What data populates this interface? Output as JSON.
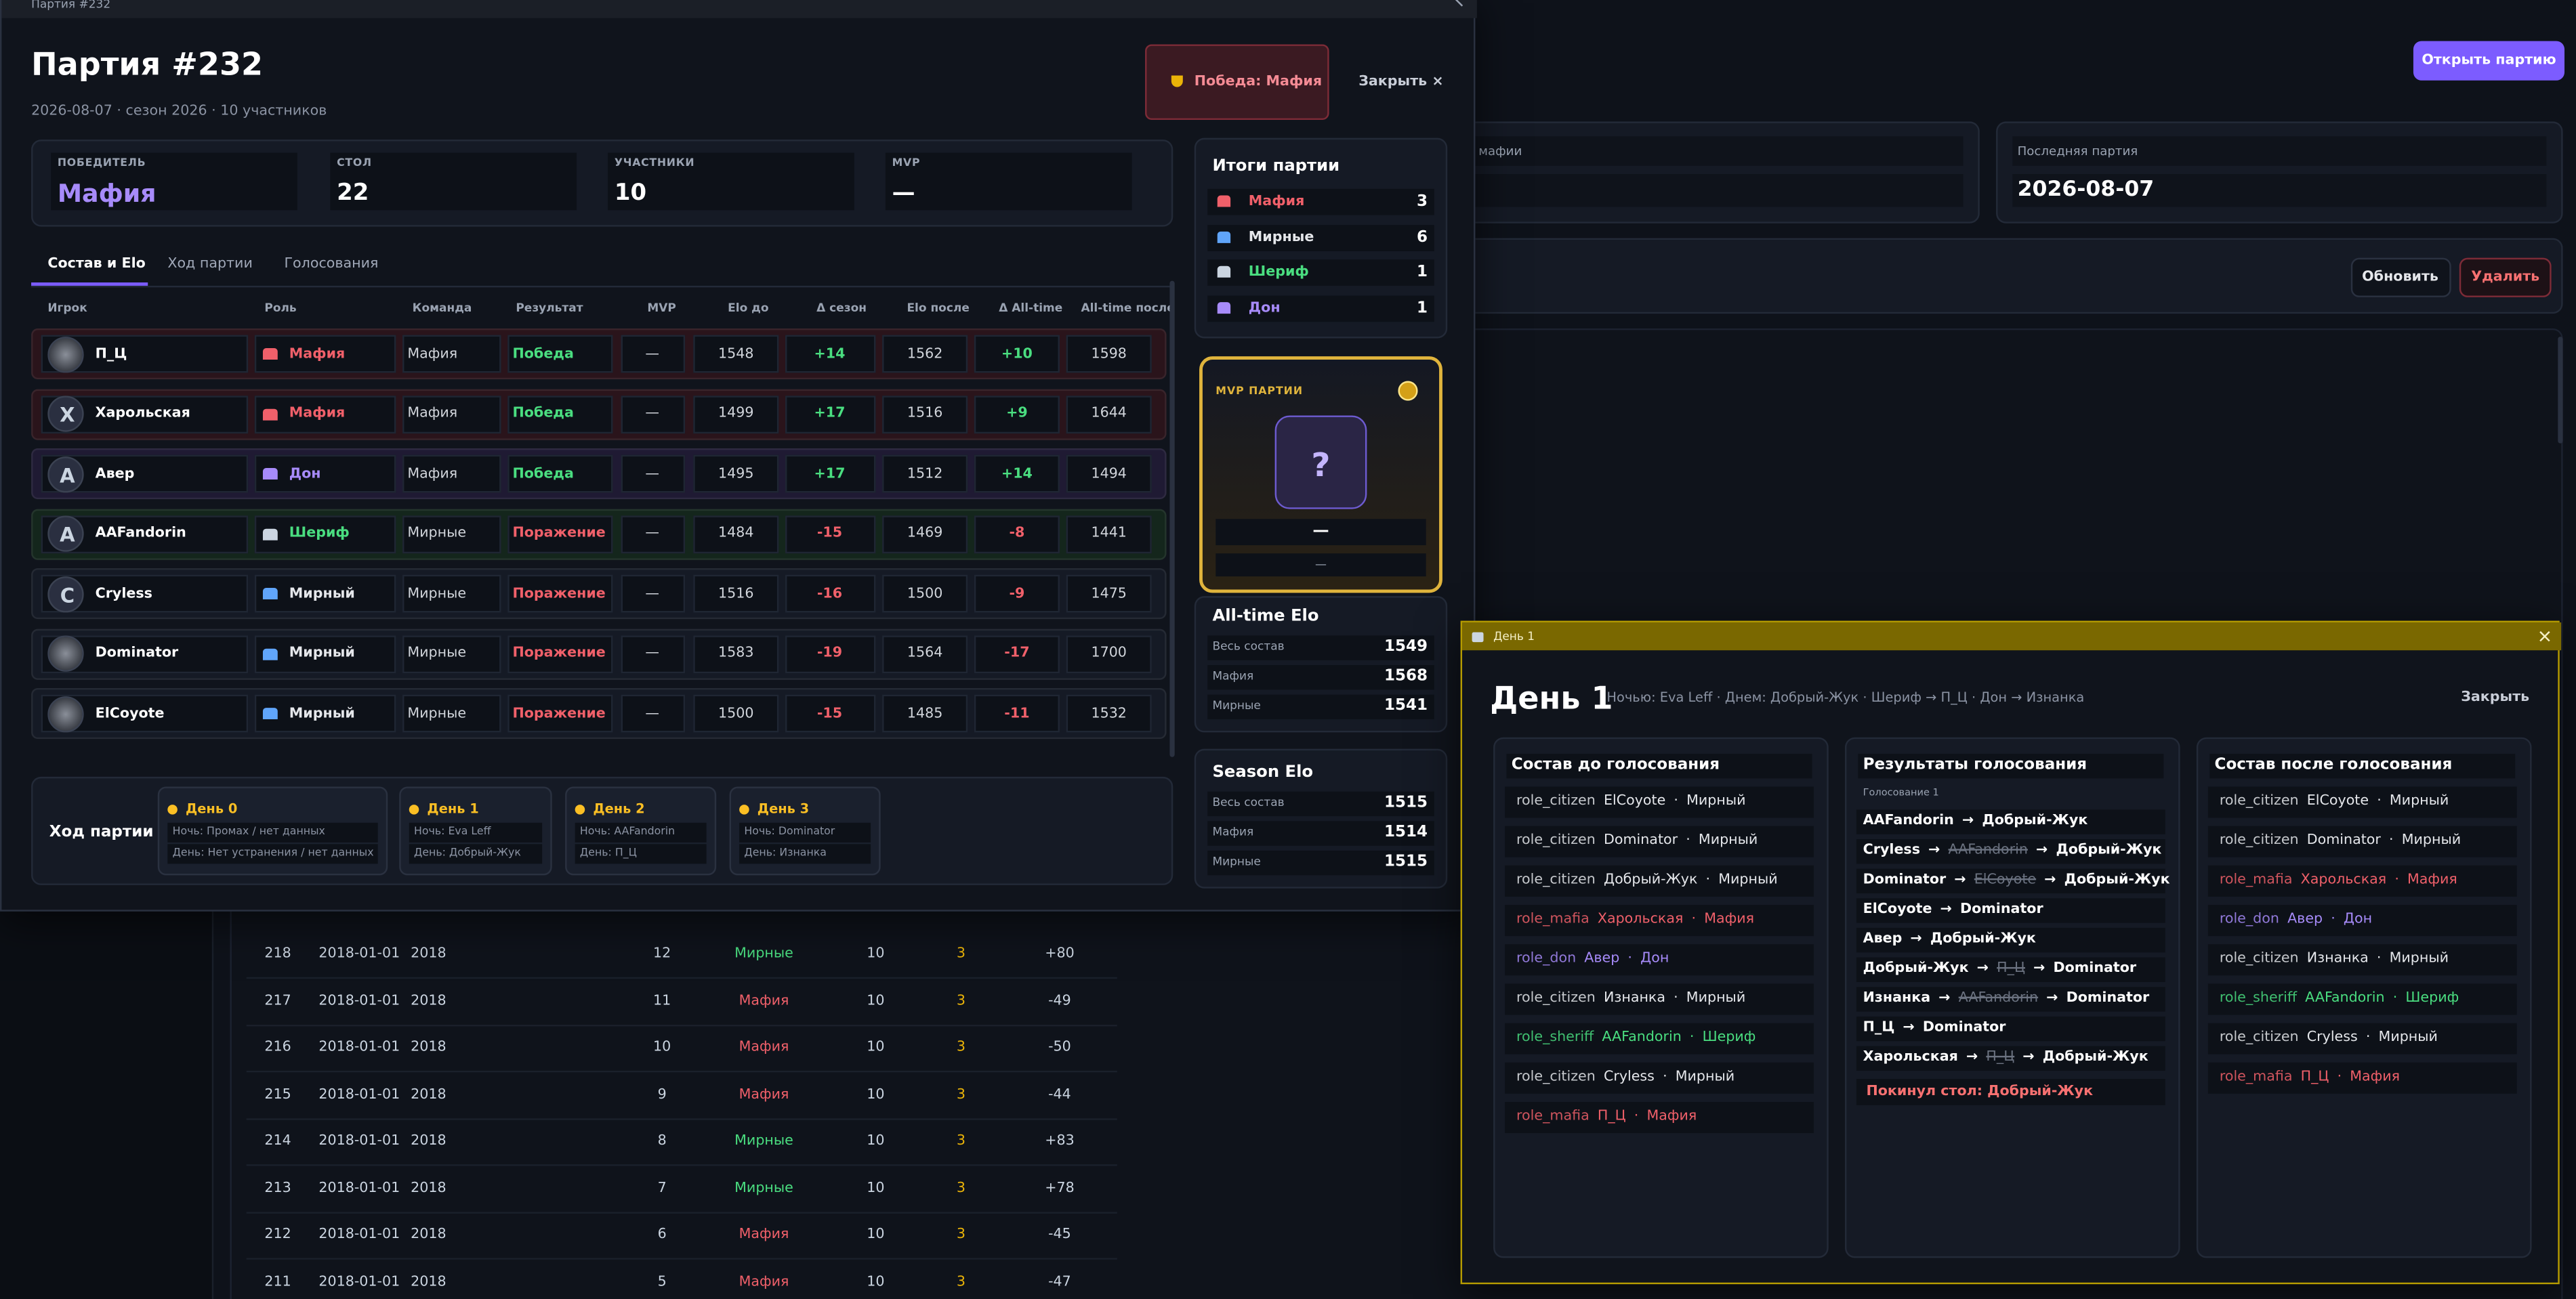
{
  "background": {
    "open_button": "Открыть партию",
    "cards": [
      {
        "label": "мафии"
      },
      {
        "label": "Последняя партия",
        "value": "2026-08-07"
      }
    ],
    "refresh_button": "Обновить",
    "delete_button": "Удалить",
    "rows": [
      {
        "cells": [
          "218",
          "2018-01-01",
          "2018",
          "12",
          "Мирные",
          "10",
          "3",
          "+80"
        ],
        "color": "#4ade80"
      },
      {
        "cells": [
          "217",
          "2018-01-01",
          "2018",
          "11",
          "Мафия",
          "10",
          "3",
          "-49"
        ],
        "color": "#f0606a"
      },
      {
        "cells": [
          "216",
          "2018-01-01",
          "2018",
          "10",
          "Мафия",
          "10",
          "3",
          "-50"
        ],
        "color": "#f0606a"
      },
      {
        "cells": [
          "215",
          "2018-01-01",
          "2018",
          "9",
          "Мафия",
          "10",
          "3",
          "-44"
        ],
        "color": "#f0606a"
      },
      {
        "cells": [
          "214",
          "2018-01-01",
          "2018",
          "8",
          "Мирные",
          "10",
          "3",
          "+83"
        ],
        "color": "#4ade80"
      },
      {
        "cells": [
          "213",
          "2018-01-01",
          "2018",
          "7",
          "Мирные",
          "10",
          "3",
          "+78"
        ],
        "color": "#4ade80"
      },
      {
        "cells": [
          "212",
          "2018-01-01",
          "2018",
          "6",
          "Мафия",
          "10",
          "3",
          "-45"
        ],
        "color": "#f0606a"
      },
      {
        "cells": [
          "211",
          "2018-01-01",
          "2018",
          "5",
          "Мафия",
          "10",
          "3",
          "-47"
        ],
        "color": "#f0606a"
      }
    ]
  },
  "window_main": {
    "titlebar": "Партия #232",
    "title": "Партия #232",
    "subtitle": "2026-08-07 · сезон 2026 · 10 участников",
    "badge": "Победа: Мафия",
    "close": "Закрыть ×",
    "stats": [
      {
        "label": "ПОБЕДИТЕЛЬ",
        "value": "Мафия"
      },
      {
        "label": "СТОЛ",
        "value": "22"
      },
      {
        "label": "УЧАСТНИКИ",
        "value": "10"
      },
      {
        "label": "MVP",
        "value": "—"
      }
    ],
    "tabs": [
      "Состав и Elo",
      "Ход партии",
      "Голосования"
    ],
    "table": {
      "headers": [
        "Игрок",
        "Роль",
        "Команда",
        "Результат",
        "MVP",
        "Elo до",
        "Δ сезон",
        "Elo после",
        "Δ All-time",
        "All-time после"
      ],
      "rows": [
        {
          "cells": [
            "П_Ц",
            "Мафия",
            "Мафия",
            "Победа",
            "—",
            "1548",
            "+14",
            "1562",
            "+10",
            "1598"
          ],
          "color": "#f0606a",
          "icon_color": "#f0606a",
          "tint": "#2a141b",
          "result_color": "#4ade80"
        },
        {
          "avatar": "Х",
          "cells": [
            "Харольская",
            "Мафия",
            "Мафия",
            "Победа",
            "—",
            "1499",
            "+17",
            "1516",
            "+9",
            "1644"
          ],
          "color": "#f0606a",
          "icon_color": "#f0606a",
          "tint": "#2a141b",
          "result_color": "#4ade80"
        },
        {
          "avatar": "А",
          "cells": [
            "Авер",
            "Дон",
            "Мафия",
            "Победа",
            "—",
            "1495",
            "+17",
            "1512",
            "+14",
            "1494"
          ],
          "color": "#a78bfa",
          "icon_color": "#a78bfa",
          "tint": "#1f1a33",
          "result_color": "#4ade80"
        },
        {
          "avatar": "A",
          "cells": [
            "AAFandorin",
            "Шериф",
            "Мирные",
            "Поражение",
            "—",
            "1484",
            "-15",
            "1469",
            "-8",
            "1441"
          ],
          "color": "#4ade80",
          "icon_color": "#cbd5e1",
          "tint": "#14261c",
          "result_color": "#f0606a"
        },
        {
          "avatar": "C",
          "cells": [
            "Cryless",
            "Мирный",
            "Мирные",
            "Поражение",
            "—",
            "1516",
            "-16",
            "1500",
            "-9",
            "1475"
          ],
          "color": "#e5e7eb",
          "icon_color": "#60a5fa",
          "tint": "#151a25",
          "result_color": "#f0606a"
        },
        {
          "cells": [
            "Dominator",
            "Мирный",
            "Мирные",
            "Поражение",
            "—",
            "1583",
            "-19",
            "1564",
            "-17",
            "1700"
          ],
          "color": "#e5e7eb",
          "icon_color": "#60a5fa",
          "tint": "#151a25",
          "result_color": "#f0606a"
        },
        {
          "cells": [
            "ElCoyote",
            "Мирный",
            "Мирные",
            "Поражение",
            "—",
            "1500",
            "-15",
            "1485",
            "-11",
            "1532"
          ],
          "color": "#e5e7eb",
          "icon_color": "#60a5fa",
          "tint": "#151a25",
          "result_color": "#f0606a"
        }
      ]
    },
    "summary": {
      "title": "Итоги партии",
      "items": [
        {
          "label": "Мафия",
          "value": "3",
          "color": "#f0606a",
          "icon_color": "#f0606a"
        },
        {
          "label": "Мирные",
          "value": "6",
          "color": "#e5e7eb",
          "icon_color": "#60a5fa"
        },
        {
          "label": "Шериф",
          "value": "1",
          "color": "#4ade80",
          "icon_color": "#cbd5e1"
        },
        {
          "label": "Дон",
          "value": "1",
          "color": "#a78bfa",
          "icon_color": "#a78bfa"
        }
      ]
    },
    "mvp": {
      "label": "MVP ПАРТИИ",
      "placeholder": "?",
      "name": "—",
      "note": "—"
    },
    "alltime": {
      "title": "All-time Elo",
      "items": [
        {
          "label": "Весь состав",
          "value": "1549"
        },
        {
          "label": "Мафия",
          "value": "1568"
        },
        {
          "label": "Мирные",
          "value": "1541"
        }
      ]
    },
    "season": {
      "title": "Season Elo",
      "items": [
        {
          "label": "Весь состав",
          "value": "1515"
        },
        {
          "label": "Мафия",
          "value": "1514"
        },
        {
          "label": "Мирные",
          "value": "1515"
        }
      ]
    },
    "timeline": {
      "title": "Ход партии",
      "days": [
        {
          "title": "День 0",
          "lines": [
            "Ночь: Промах / нет данных",
            "День: Нет устранения / нет данных"
          ]
        },
        {
          "title": "День 1",
          "lines": [
            "Ночь: Eva Leff",
            "День: Добрый-Жук"
          ]
        },
        {
          "title": "День 2",
          "lines": [
            "Ночь: AAFandorin",
            "День: П_Ц"
          ]
        },
        {
          "title": "День 3",
          "lines": [
            "Ночь: Dominator",
            "День: Изнанка"
          ]
        }
      ]
    }
  },
  "window_day": {
    "titlebar": "День 1",
    "title": "День 1",
    "meta": "Ночью: Eva Leff  ·  Днем: Добрый-Жук  ·  Шериф → П_Ц  ·  Дон → Изнанка",
    "close": "Закрыть",
    "before": {
      "title": "Состав до голосования",
      "items": [
        {
          "parts": [
            "role_citizen",
            "ElCoyote",
            "·",
            "Мирный"
          ],
          "color": "#e5e7eb"
        },
        {
          "parts": [
            "role_citizen",
            "Dominator",
            "·",
            "Мирный"
          ],
          "color": "#e5e7eb"
        },
        {
          "parts": [
            "role_citizen",
            "Добрый-Жук",
            "·",
            "Мирный"
          ],
          "color": "#e5e7eb"
        },
        {
          "parts": [
            "role_mafia",
            "Харольская",
            "·",
            "Мафия"
          ],
          "color": "#f0606a"
        },
        {
          "parts": [
            "role_don",
            "Авер",
            "·",
            "Дон"
          ],
          "color": "#a78bfa"
        },
        {
          "parts": [
            "role_citizen",
            "Изнанка",
            "·",
            "Мирный"
          ],
          "color": "#e5e7eb"
        },
        {
          "parts": [
            "role_sheriff",
            "AAFandorin",
            "·",
            "Шериф"
          ],
          "color": "#4ade80"
        },
        {
          "parts": [
            "role_citizen",
            "Cryless",
            "·",
            "Мирный"
          ],
          "color": "#e5e7eb"
        },
        {
          "parts": [
            "role_mafia",
            "П_Ц",
            "·",
            "Мафия"
          ],
          "color": "#f0606a"
        }
      ]
    },
    "results": {
      "title": "Результаты голосования",
      "round": "Голосование 1",
      "votes": [
        [
          {
            "text": "AAFandorin"
          },
          {
            "text": "→"
          },
          {
            "text": "Добрый-Жук"
          }
        ],
        [
          {
            "text": "Cryless"
          },
          {
            "text": "→"
          },
          {
            "text": "AAFandorin",
            "struck": true
          },
          {
            "text": "→"
          },
          {
            "text": "Добрый-Жук"
          }
        ],
        [
          {
            "text": "Dominator"
          },
          {
            "text": "→"
          },
          {
            "text": "ElCoyote",
            "struck": true
          },
          {
            "text": "→"
          },
          {
            "text": "Добрый-Жук"
          }
        ],
        [
          {
            "text": "ElCoyote"
          },
          {
            "text": "→"
          },
          {
            "text": "Dominator"
          }
        ],
        [
          {
            "text": "Авер"
          },
          {
            "text": "→"
          },
          {
            "text": "Добрый-Жук"
          }
        ],
        [
          {
            "text": "Добрый-Жук"
          },
          {
            "text": "→"
          },
          {
            "text": "П_Ц",
            "struck": true
          },
          {
            "text": "→"
          },
          {
            "text": "Dominator"
          }
        ],
        [
          {
            "text": "Изнанка"
          },
          {
            "text": "→"
          },
          {
            "text": "AAFandorin",
            "struck": true
          },
          {
            "text": "→"
          },
          {
            "text": "Dominator"
          }
        ],
        [
          {
            "text": "П_Ц"
          },
          {
            "text": "→"
          },
          {
            "text": "Dominator"
          }
        ],
        [
          {
            "text": "Харольская"
          },
          {
            "text": "→"
          },
          {
            "text": "П_Ц",
            "struck": true
          },
          {
            "text": "→"
          },
          {
            "text": "Добрый-Жук"
          }
        ]
      ],
      "left": "Покинул стол: Добрый-Жук"
    },
    "after": {
      "title": "Состав после голосования",
      "items": [
        {
          "parts": [
            "role_citizen",
            "ElCoyote",
            "·",
            "Мирный"
          ],
          "color": "#e5e7eb"
        },
        {
          "parts": [
            "role_citizen",
            "Dominator",
            "·",
            "Мирный"
          ],
          "color": "#e5e7eb"
        },
        {
          "parts": [
            "role_mafia",
            "Харольская",
            "·",
            "Мафия"
          ],
          "color": "#f0606a"
        },
        {
          "parts": [
            "role_don",
            "Авер",
            "·",
            "Дон"
          ],
          "color": "#a78bfa"
        },
        {
          "parts": [
            "role_citizen",
            "Изнанка",
            "·",
            "Мирный"
          ],
          "color": "#e5e7eb"
        },
        {
          "parts": [
            "role_sheriff",
            "AAFandorin",
            "·",
            "Шериф"
          ],
          "color": "#4ade80"
        },
        {
          "parts": [
            "role_citizen",
            "Cryless",
            "·",
            "Мирный"
          ],
          "color": "#e5e7eb"
        },
        {
          "parts": [
            "role_mafia",
            "П_Ц",
            "·",
            "Мафия"
          ],
          "color": "#f0606a"
        }
      ]
    }
  }
}
